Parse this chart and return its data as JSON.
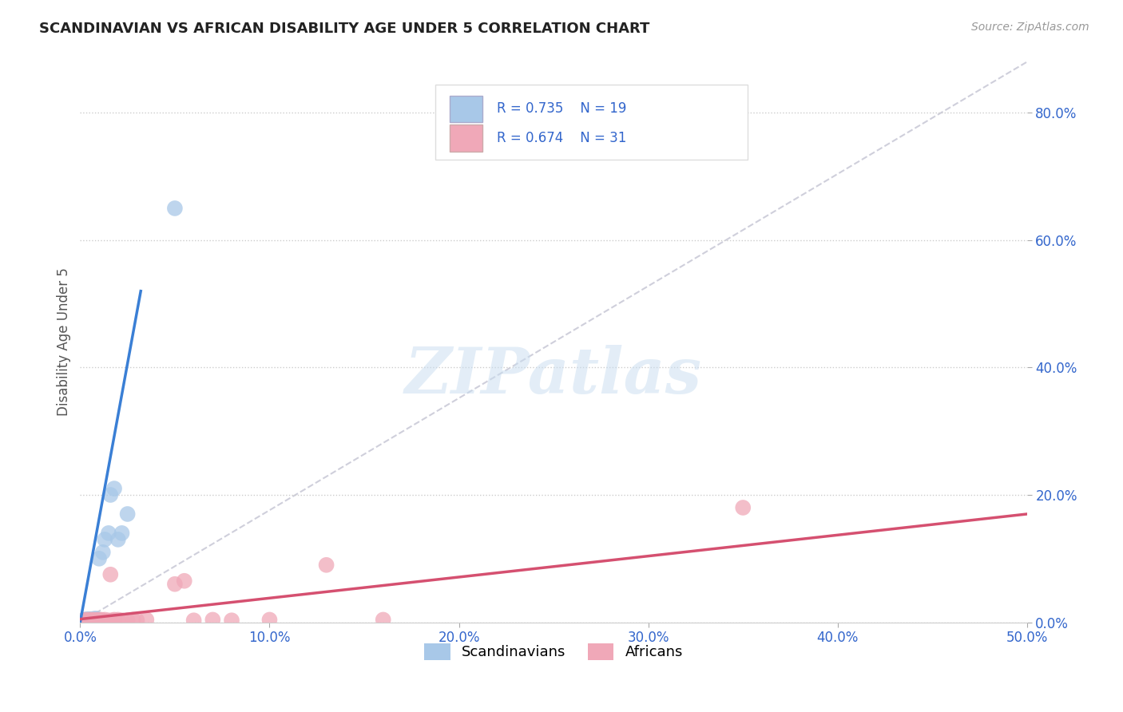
{
  "title": "SCANDINAVIAN VS AFRICAN DISABILITY AGE UNDER 5 CORRELATION CHART",
  "source_text": "Source: ZipAtlas.com",
  "ylabel": "Disability Age Under 5",
  "x_ticks": [
    0.0,
    0.1,
    0.2,
    0.3,
    0.4,
    0.5
  ],
  "x_tick_labels": [
    "0.0%",
    "10.0%",
    "20.0%",
    "30.0%",
    "40.0%",
    "50.0%"
  ],
  "y_ticks": [
    0.0,
    0.2,
    0.4,
    0.6,
    0.8
  ],
  "y_tick_labels": [
    "0.0%",
    "20.0%",
    "40.0%",
    "60.0%",
    "80.0%"
  ],
  "xlim": [
    0.0,
    0.5
  ],
  "ylim": [
    0.0,
    0.88
  ],
  "scandinavian_color": "#a8c8e8",
  "african_color": "#f0a8b8",
  "scandinavian_line_color": "#3a7fd5",
  "african_line_color": "#d55070",
  "background_color": "#ffffff",
  "watermark_text": "ZIPatlas",
  "scand_x": [
    0.002,
    0.003,
    0.004,
    0.005,
    0.005,
    0.006,
    0.007,
    0.008,
    0.009,
    0.01,
    0.012,
    0.013,
    0.015,
    0.016,
    0.018,
    0.02,
    0.022,
    0.025,
    0.05
  ],
  "scand_y": [
    0.004,
    0.003,
    0.005,
    0.003,
    0.004,
    0.005,
    0.004,
    0.006,
    0.005,
    0.1,
    0.11,
    0.13,
    0.14,
    0.2,
    0.21,
    0.13,
    0.14,
    0.17,
    0.65
  ],
  "afric_x": [
    0.002,
    0.003,
    0.004,
    0.005,
    0.006,
    0.007,
    0.008,
    0.009,
    0.01,
    0.011,
    0.012,
    0.013,
    0.015,
    0.016,
    0.017,
    0.018,
    0.02,
    0.022,
    0.025,
    0.028,
    0.03,
    0.035,
    0.05,
    0.055,
    0.06,
    0.07,
    0.08,
    0.1,
    0.13,
    0.16,
    0.35
  ],
  "afric_y": [
    0.003,
    0.004,
    0.003,
    0.004,
    0.003,
    0.004,
    0.003,
    0.004,
    0.003,
    0.004,
    0.003,
    0.004,
    0.003,
    0.075,
    0.003,
    0.004,
    0.004,
    0.003,
    0.003,
    0.004,
    0.003,
    0.004,
    0.06,
    0.065,
    0.003,
    0.004,
    0.003,
    0.004,
    0.09,
    0.004,
    0.18
  ],
  "scand_line_x": [
    0.0,
    0.032
  ],
  "scand_line_y": [
    0.0,
    0.52
  ],
  "afric_line_x": [
    0.0,
    0.5
  ],
  "afric_line_y": [
    0.005,
    0.17
  ],
  "diag_line_x": [
    0.0,
    0.5
  ],
  "diag_line_y": [
    0.0,
    0.88
  ]
}
